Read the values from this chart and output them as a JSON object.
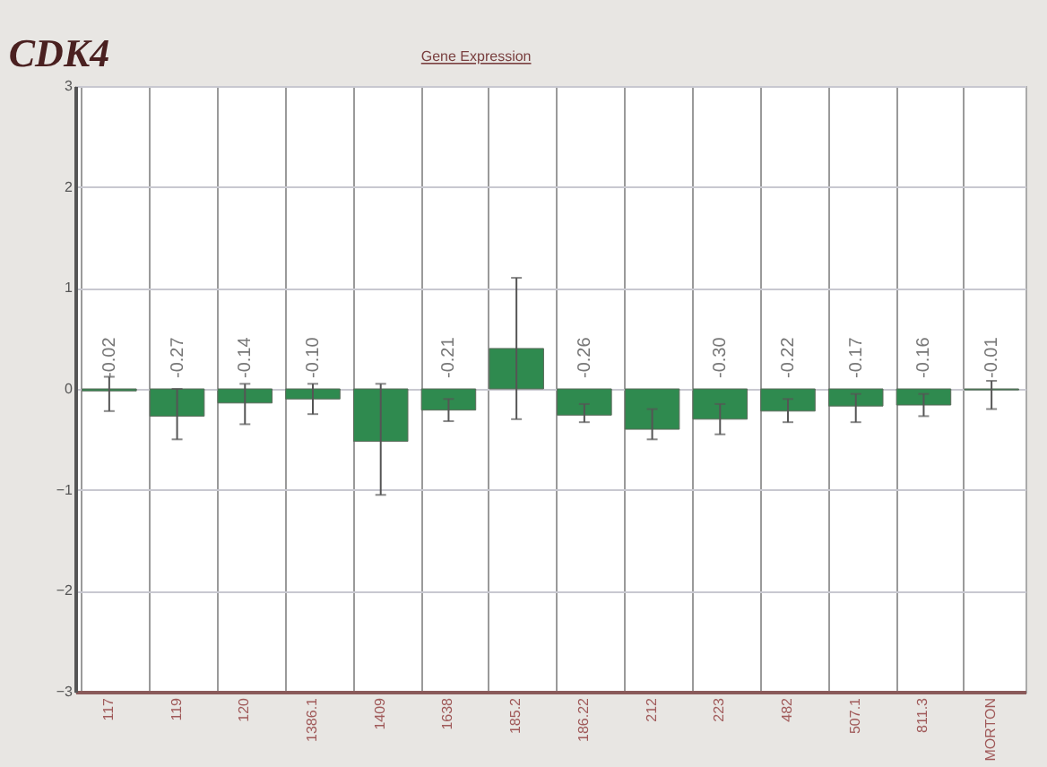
{
  "chart_data": {
    "type": "bar",
    "title": "CDK4",
    "subtitle": "Gene Expression",
    "categories": [
      "117",
      "119",
      "120",
      "1386.1",
      "1409",
      "1638",
      "185.2",
      "186.22",
      "212",
      "223",
      "482",
      "507.1",
      "811.3",
      "MORTON"
    ],
    "values": [
      -0.02,
      -0.27,
      -0.14,
      -0.1,
      -0.52,
      -0.21,
      0.4,
      -0.26,
      -0.4,
      -0.3,
      -0.22,
      -0.17,
      -0.16,
      -0.01
    ],
    "errors": [
      [
        -0.22,
        0.12
      ],
      [
        -0.5,
        0.0
      ],
      [
        -0.35,
        0.05
      ],
      [
        -0.25,
        0.05
      ],
      [
        -1.05,
        0.05
      ],
      [
        -0.32,
        -0.1
      ],
      [
        -0.3,
        1.1
      ],
      [
        -0.33,
        -0.15
      ],
      [
        -0.5,
        -0.2
      ],
      [
        -0.45,
        -0.15
      ],
      [
        -0.33,
        -0.1
      ],
      [
        -0.33,
        -0.05
      ],
      [
        -0.27,
        -0.05
      ],
      [
        -0.2,
        0.08
      ]
    ],
    "value_labels": [
      "-0.02",
      "-0.27",
      "-0.14",
      "-0.10",
      null,
      "-0.21",
      null,
      "-0.26",
      null,
      "-0.30",
      "-0.22",
      "-0.17",
      "-0.16",
      "-0.01"
    ],
    "color": "#2f8a4f",
    "ylim": [
      -3,
      3
    ],
    "yticks": [
      -3,
      -2,
      -1,
      0,
      1,
      2,
      3
    ],
    "grid": true
  }
}
